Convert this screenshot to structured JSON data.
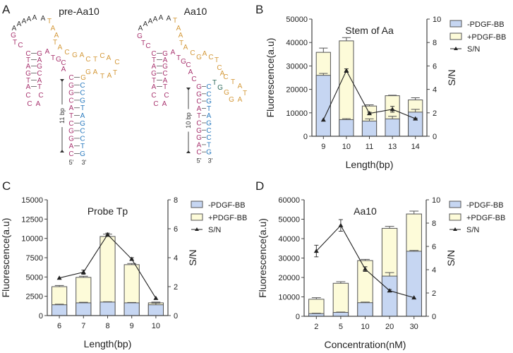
{
  "panel_labels": [
    "A",
    "B",
    "C",
    "D"
  ],
  "panel_a": {
    "structures": [
      {
        "title": "pre-Aa10",
        "loop": "AAAAAA",
        "hairpin_5": "GTC",
        "hairpin_left": "CTAGTA",
        "hairpin_right": "GAGCAT",
        "hairpin_loop": "CCCA",
        "junction": "ATGCA",
        "orange": "TAATACGACTCACTATAGG",
        "green": "",
        "stem_left": "CGGCATCGGAC",
        "stem_right": "CCGTAGCCTG",
        "bracket_label": "11 bp",
        "end5": "5'",
        "end3": "3'"
      },
      {
        "title": "Aa10",
        "loop": "AAAAAA",
        "hairpin_5": "GTC",
        "hairpin_left": "CTAGTA",
        "hairpin_right": "GAGCAT",
        "hairpin_loop": "CCCA",
        "junction": "ATGCAC",
        "orange": "TAATACGACTCACTATAGG",
        "green": "GT",
        "stem_left": "GGCATCGGAC",
        "stem_right": "CCGTAGCCTG",
        "bracket_label": "10 bp",
        "end5": "5'",
        "end3": "3'"
      }
    ],
    "colors": {
      "loop": "#333333",
      "pink": "#a8346f",
      "orange": "#d4993a",
      "blue": "#2b7bbf",
      "green": "#2f6b5c"
    }
  },
  "legend": {
    "minus": "-PDGF-BB",
    "plus": "+PDGF-BB",
    "sn": "S/N"
  },
  "colors": {
    "minus": "#c6d6f2",
    "plus": "#fdfbd9",
    "edge": "#555555",
    "line": "#222222"
  },
  "chart_data": [
    {
      "type": "bar",
      "panel": "B",
      "title": "Stem of Aa",
      "xlabel": "Length(bp)",
      "ylabel": "Fluorescence(a.u)",
      "y2label": "S/N",
      "categories": [
        "9",
        "10",
        "11",
        "13",
        "14"
      ],
      "ylim": [
        0,
        50000
      ],
      "yticks": [
        "0",
        "10000",
        "20000",
        "30000",
        "40000",
        "50000"
      ],
      "y2lim": [
        0,
        10
      ],
      "y2ticks": [
        "0",
        "2",
        "4",
        "6",
        "8",
        "10"
      ],
      "series": [
        {
          "name": "-PDGF-BB",
          "values": [
            26000,
            7100,
            6500,
            7400,
            10300
          ],
          "errors": [
            800,
            400,
            900,
            1100,
            1200
          ]
        },
        {
          "name": "+PDGF-BB",
          "values": [
            35800,
            40700,
            12900,
            17300,
            15500
          ],
          "errors": [
            1800,
            1400,
            500,
            200,
            900
          ]
        },
        {
          "name": "S/N",
          "axis": "right",
          "values": [
            1.4,
            5.6,
            1.95,
            2.3,
            1.5
          ],
          "errors": [
            0,
            0.15,
            0.1,
            0.25,
            0.05
          ]
        }
      ],
      "legend": "right"
    },
    {
      "type": "bar",
      "panel": "C",
      "title": "Probe Tp",
      "xlabel": "Length(bp)",
      "ylabel": "Fluorescence(a.u)",
      "y2label": "S/N",
      "categories": [
        "6",
        "7",
        "8",
        "9",
        "10"
      ],
      "ylim": [
        0,
        15000
      ],
      "yticks": [
        "0",
        "2500",
        "5000",
        "7500",
        "10000",
        "12500",
        "15000"
      ],
      "y2lim": [
        0,
        8
      ],
      "y2ticks": [
        "0",
        "2",
        "4",
        "6",
        "8"
      ],
      "series": [
        {
          "name": "-PDGF-BB",
          "values": [
            1400,
            1650,
            1750,
            1650,
            1400
          ],
          "errors": [
            80,
            80,
            50,
            50,
            200
          ]
        },
        {
          "name": "+PDGF-BB",
          "values": [
            3750,
            4950,
            10250,
            6600,
            1650
          ],
          "errors": [
            150,
            150,
            300,
            150,
            100
          ]
        },
        {
          "name": "S/N",
          "axis": "right",
          "values": [
            2.6,
            3.0,
            5.6,
            3.9,
            1.2
          ],
          "errors": [
            0,
            0.15,
            0.1,
            0.1,
            0
          ]
        }
      ],
      "legend": "right"
    },
    {
      "type": "bar",
      "panel": "D",
      "title": "Aa10",
      "xlabel": "Concentration(nM)",
      "ylabel": "Fluorescence(a.u)",
      "y2label": "S/N",
      "categories": [
        "2",
        "5",
        "10",
        "20",
        "30"
      ],
      "ylim": [
        0,
        60000
      ],
      "yticks": [
        "0",
        "10000",
        "20000",
        "30000",
        "40000",
        "50000",
        "60000"
      ],
      "y2lim": [
        0,
        10
      ],
      "y2ticks": [
        "0",
        "2",
        "4",
        "6",
        "8",
        "10"
      ],
      "series": [
        {
          "name": "-PDGF-BB",
          "values": [
            1400,
            2000,
            7000,
            20700,
            33500
          ],
          "errors": [
            200,
            200,
            300,
            1800,
            400
          ]
        },
        {
          "name": "+PDGF-BB",
          "values": [
            8800,
            17000,
            28700,
            45300,
            52700
          ],
          "errors": [
            800,
            800,
            600,
            1000,
            1500
          ]
        },
        {
          "name": "S/N",
          "axis": "right",
          "values": [
            5.6,
            7.8,
            4.05,
            2.2,
            1.6
          ],
          "errors": [
            0.5,
            0.5,
            0.2,
            0.1,
            0
          ]
        }
      ],
      "legend": "right"
    }
  ]
}
